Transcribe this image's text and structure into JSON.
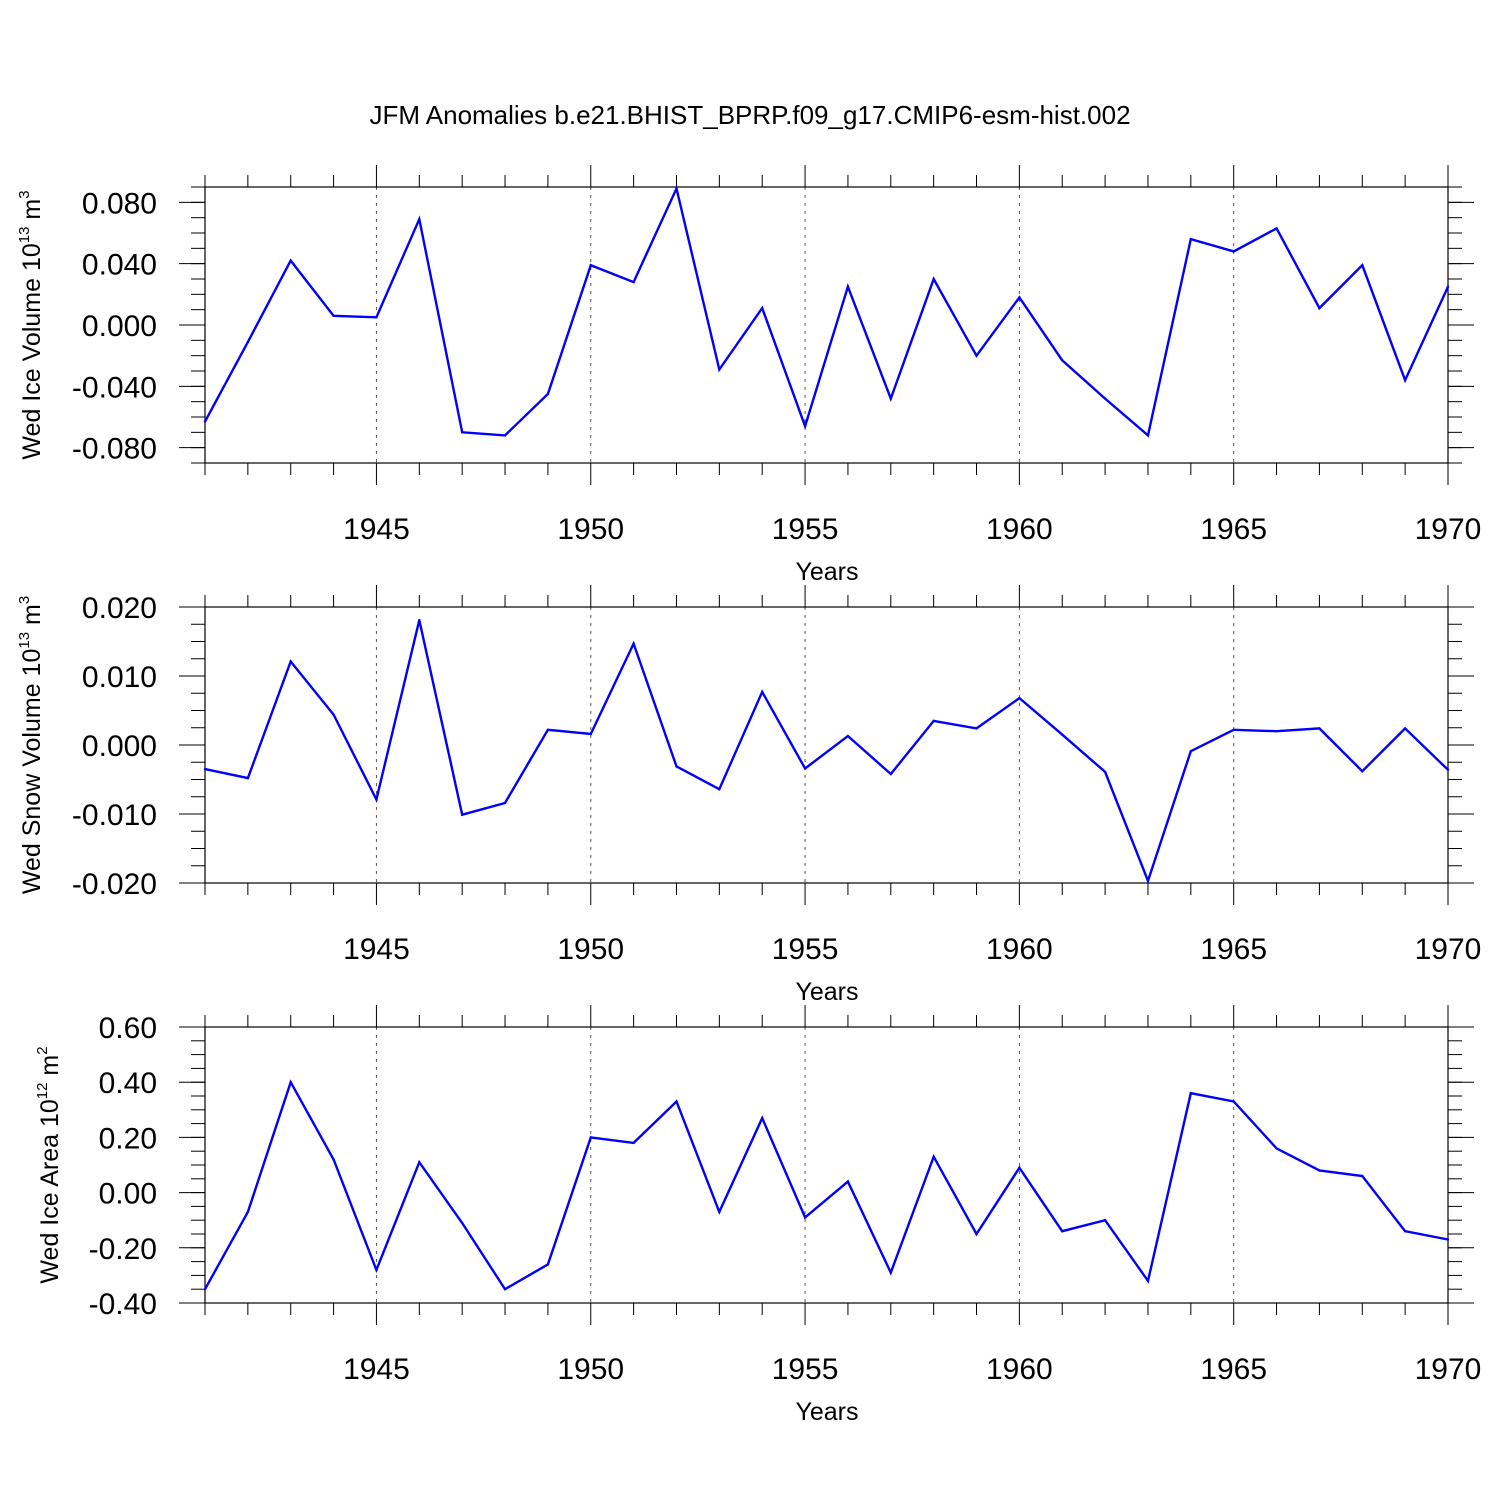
{
  "figure": {
    "title": "JFM Anomalies b.e21.BHIST_BPRP.f09_g17.CMIP6-esm-hist.002"
  },
  "colors": {
    "line": "#0000ff",
    "axes": "#000000",
    "grid": "#555555",
    "background": "#ffffff"
  },
  "chart_data": [
    {
      "type": "line",
      "title": "",
      "xlabel": "Years",
      "ylabel_main": "Wed Ice Volume 10",
      "ylabel_sup": "13",
      "ylabel_unit": " m",
      "ylabel_unit_sup": "3",
      "xlim": [
        1941,
        1970
      ],
      "ylim": [
        -0.09,
        0.09
      ],
      "x_ticks": [
        1945,
        1950,
        1955,
        1960,
        1965,
        1970
      ],
      "x_tick_labels": [
        "1945",
        "1950",
        "1955",
        "1960",
        "1965",
        "1970"
      ],
      "y_ticks": [
        -0.08,
        -0.04,
        0.0,
        0.04,
        0.08
      ],
      "y_tick_labels": [
        "-0.080",
        "-0.040",
        "0.000",
        "0.040",
        "0.080"
      ],
      "y_minor_step": 0.01,
      "grid": "vertical dashed at major x ticks",
      "x": [
        1941,
        1942,
        1943,
        1944,
        1945,
        1946,
        1947,
        1948,
        1949,
        1950,
        1951,
        1952,
        1953,
        1954,
        1955,
        1956,
        1957,
        1958,
        1959,
        1960,
        1961,
        1962,
        1963,
        1964,
        1965,
        1966,
        1967,
        1968,
        1969,
        1970
      ],
      "y": [
        -0.063,
        -0.011,
        0.042,
        0.006,
        0.005,
        0.069,
        -0.07,
        -0.072,
        -0.045,
        0.039,
        0.028,
        0.089,
        -0.029,
        0.011,
        -0.066,
        0.025,
        -0.048,
        0.03,
        -0.02,
        0.018,
        -0.023,
        -0.048,
        -0.072,
        0.056,
        0.048,
        0.063,
        0.011,
        0.039,
        -0.036,
        0.025
      ]
    },
    {
      "type": "line",
      "title": "",
      "xlabel": "Years",
      "ylabel_main": "Wed Snow Volume 10",
      "ylabel_sup": "13",
      "ylabel_unit": " m",
      "ylabel_unit_sup": "3",
      "xlim": [
        1941,
        1970
      ],
      "ylim": [
        -0.02,
        0.02
      ],
      "x_ticks": [
        1945,
        1950,
        1955,
        1960,
        1965,
        1970
      ],
      "x_tick_labels": [
        "1945",
        "1950",
        "1955",
        "1960",
        "1965",
        "1970"
      ],
      "y_ticks": [
        -0.02,
        -0.01,
        0.0,
        0.01,
        0.02
      ],
      "y_tick_labels": [
        "-0.020",
        "-0.010",
        "0.000",
        "0.010",
        "0.020"
      ],
      "y_minor_step": 0.0025,
      "grid": "vertical dashed at major x ticks",
      "x": [
        1941,
        1942,
        1943,
        1944,
        1945,
        1946,
        1947,
        1948,
        1949,
        1950,
        1951,
        1952,
        1953,
        1954,
        1955,
        1956,
        1957,
        1958,
        1959,
        1960,
        1961,
        1962,
        1963,
        1964,
        1965,
        1966,
        1967,
        1968,
        1969,
        1970
      ],
      "y": [
        -0.0035,
        -0.0048,
        0.0121,
        0.0044,
        -0.0079,
        0.0181,
        -0.0101,
        -0.0084,
        0.0022,
        0.0016,
        0.0147,
        -0.0031,
        -0.0064,
        0.0077,
        -0.0034,
        0.0013,
        -0.0042,
        0.0035,
        0.0024,
        0.0068,
        0.0015,
        -0.0039,
        -0.0197,
        -0.0009,
        0.0022,
        0.002,
        0.0024,
        -0.0038,
        0.0024,
        -0.0036
      ]
    },
    {
      "type": "line",
      "title": "",
      "xlabel": "Years",
      "ylabel_main": "Wed Ice Area 10",
      "ylabel_sup": "12",
      "ylabel_unit": " m",
      "ylabel_unit_sup": "2",
      "xlim": [
        1941,
        1970
      ],
      "ylim": [
        -0.4,
        0.6
      ],
      "x_ticks": [
        1945,
        1950,
        1955,
        1960,
        1965,
        1970
      ],
      "x_tick_labels": [
        "1945",
        "1950",
        "1955",
        "1960",
        "1965",
        "1970"
      ],
      "y_ticks": [
        -0.4,
        -0.2,
        0.0,
        0.2,
        0.4,
        0.6
      ],
      "y_tick_labels": [
        "-0.40",
        "-0.20",
        "0.00",
        "0.20",
        "0.40",
        "0.60"
      ],
      "y_minor_step": 0.05,
      "grid": "vertical dashed at major x ticks",
      "x": [
        1941,
        1942,
        1943,
        1944,
        1945,
        1946,
        1947,
        1948,
        1949,
        1950,
        1951,
        1952,
        1953,
        1954,
        1955,
        1956,
        1957,
        1958,
        1959,
        1960,
        1961,
        1962,
        1963,
        1964,
        1965,
        1966,
        1967,
        1968,
        1969,
        1970
      ],
      "y": [
        -0.35,
        -0.07,
        0.4,
        0.12,
        -0.28,
        0.11,
        -0.11,
        -0.35,
        -0.26,
        0.2,
        0.18,
        0.33,
        -0.07,
        0.27,
        -0.09,
        0.04,
        -0.29,
        0.13,
        -0.15,
        0.09,
        -0.14,
        -0.1,
        -0.32,
        0.36,
        0.33,
        0.16,
        0.08,
        0.06,
        -0.14,
        -0.17
      ]
    }
  ]
}
